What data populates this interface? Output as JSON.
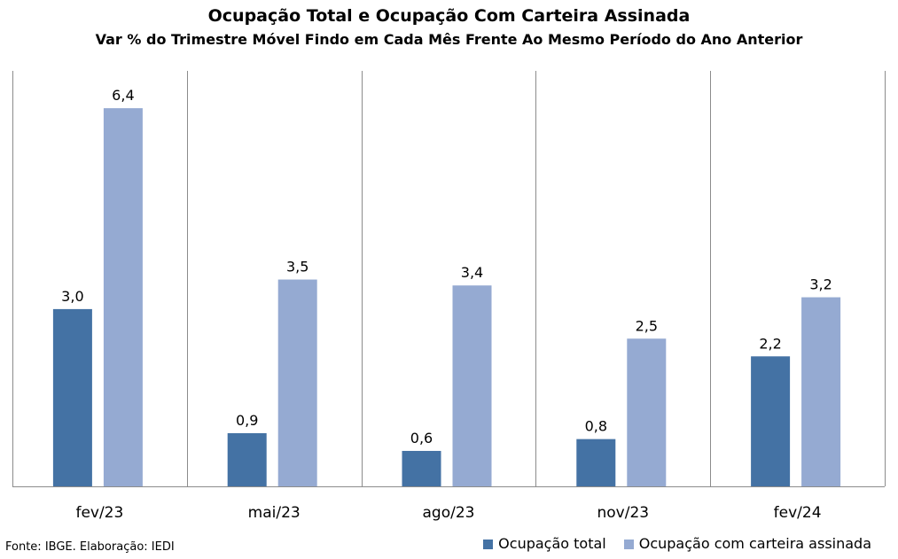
{
  "chart_data": {
    "type": "bar",
    "title": "Ocupação Total e Ocupação Com Carteira Assinada",
    "subtitle": "Var % do Trimestre Móvel Findo em Cada Mês Frente Ao Mesmo Período do Ano Anterior",
    "categories": [
      "fev/23",
      "mai/23",
      "ago/23",
      "nov/23",
      "fev/24"
    ],
    "series": [
      {
        "name": "Ocupação total",
        "color": "#4472a4",
        "values": [
          3.0,
          0.9,
          0.6,
          0.8,
          2.2
        ],
        "labels": [
          "3,0",
          "0,9",
          "0,6",
          "0,8",
          "2,2"
        ]
      },
      {
        "name": "Ocupação com carteira assinada",
        "color": "#95aad2",
        "values": [
          6.4,
          3.5,
          3.4,
          2.5,
          3.2
        ],
        "labels": [
          "6,4",
          "3,5",
          "3,4",
          "2,5",
          "3,2"
        ]
      }
    ],
    "ylim": [
      0,
      7
    ],
    "xlabel": "",
    "ylabel": "",
    "grid": "vertical category separators",
    "legend": "bottom-right"
  },
  "footer": {
    "source": "Fonte: IBGE. Elaboração: IEDI"
  }
}
